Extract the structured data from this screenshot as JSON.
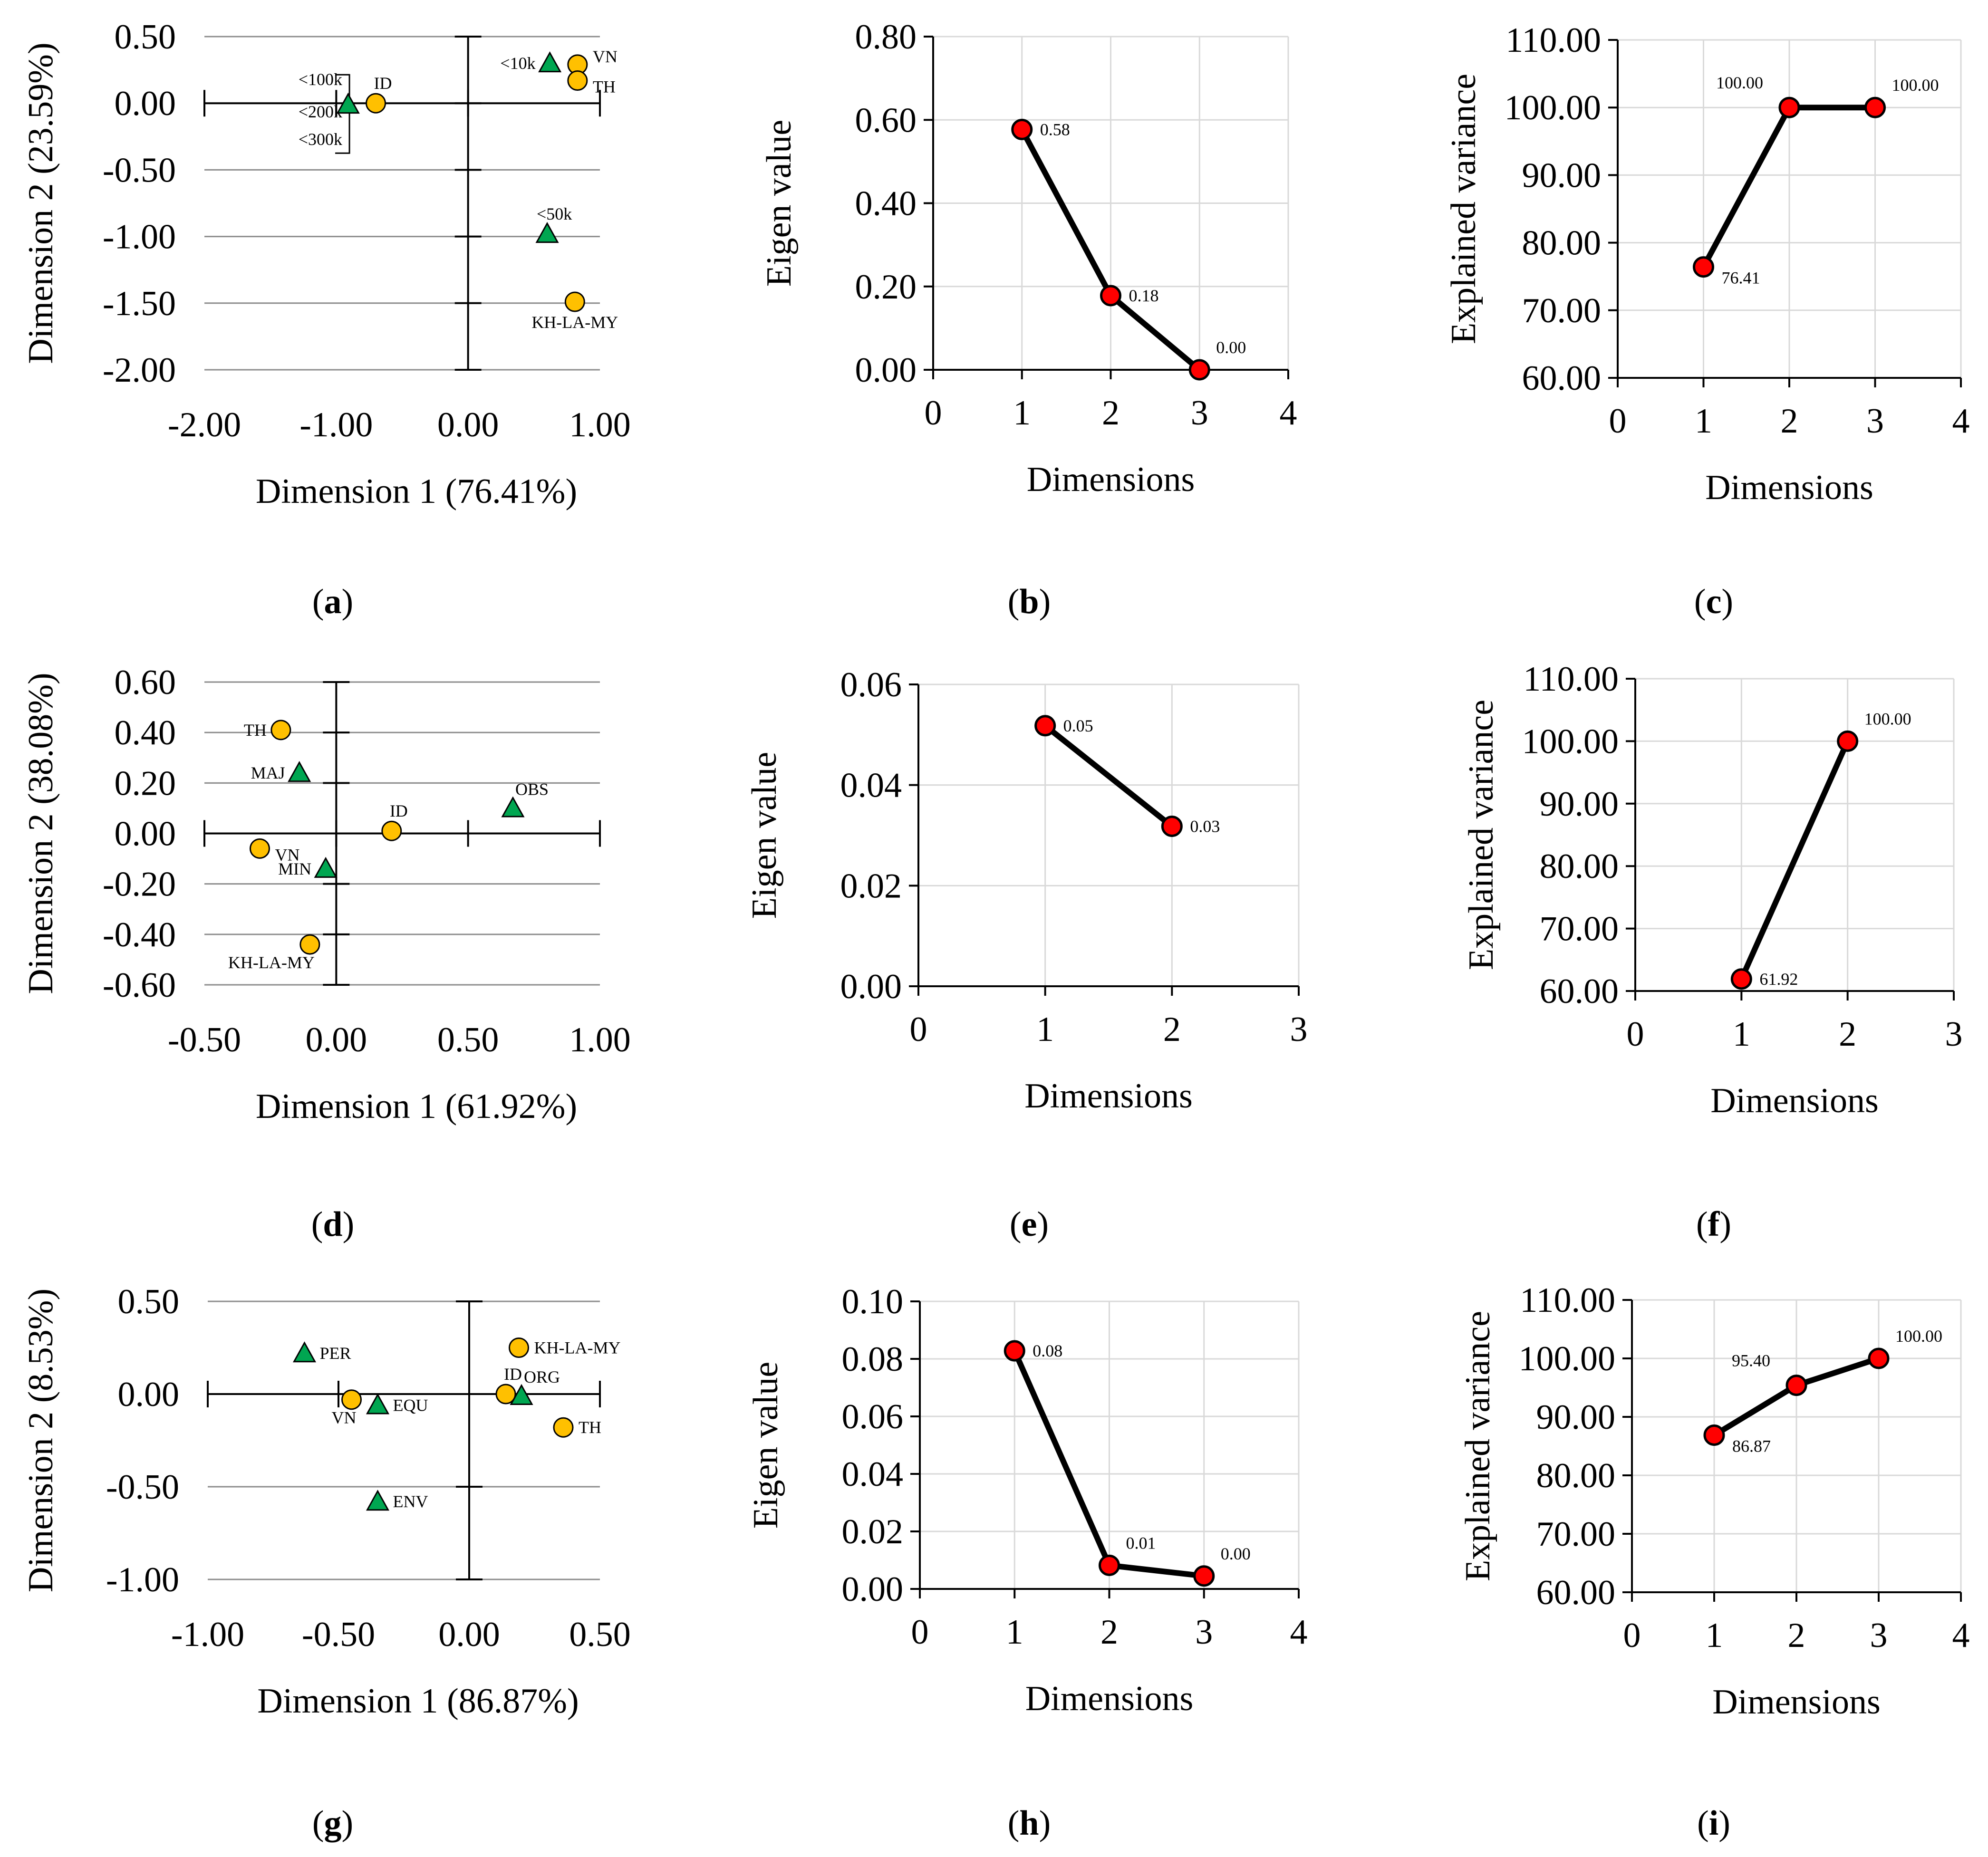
{
  "colors": {
    "circle_fill": "#FFC000",
    "triangle_fill": "#00A651",
    "scree_fill": "#FF0000",
    "line": "#000000",
    "grid_light": "#d9d9d9",
    "grid_dark": "#8c8c8c"
  },
  "chart_data": [
    {
      "id": "a",
      "type": "scatter",
      "caption": "a",
      "xlabel": "Dimension 1 (76.41%)",
      "ylabel": "Dimension 2 (23.59%)",
      "xlim": [
        -2.0,
        1.0
      ],
      "ylim": [
        -2.0,
        0.5
      ],
      "xticks": [
        -2.0,
        -1.0,
        0.0,
        1.0
      ],
      "xtick_labels": [
        "-2.00",
        "-1.00",
        "0.00",
        "1.00"
      ],
      "yticks": [
        -2.0,
        -1.5,
        -1.0,
        -0.5,
        0.0,
        0.5
      ],
      "ytick_labels": [
        "-2.00",
        "-1.50",
        "-1.00",
        "-0.50",
        "0.00",
        "0.50"
      ],
      "points": [
        {
          "label": "VN",
          "marker": "circle",
          "x": 0.83,
          "y": 0.29,
          "label_pos": "right-up"
        },
        {
          "label": "TH",
          "marker": "circle",
          "x": 0.83,
          "y": 0.17,
          "label_pos": "right-down"
        },
        {
          "label": "ID",
          "marker": "circle",
          "x": -0.7,
          "y": 0.0,
          "label_pos": "up"
        },
        {
          "label": "KH-LA-MY",
          "marker": "circle",
          "x": 0.81,
          "y": -1.49,
          "label_pos": "below"
        },
        {
          "label": "<10k",
          "marker": "triangle",
          "x": 0.62,
          "y": 0.3,
          "label_pos": "left"
        },
        {
          "label": "<50k",
          "marker": "triangle",
          "x": 0.6,
          "y": -0.98,
          "label_pos": "up"
        },
        {
          "label": "",
          "marker": "triangle",
          "x": -0.91,
          "y": -0.01,
          "label_pos": "none"
        }
      ],
      "bracket": {
        "labels": [
          "<100k",
          "<200k",
          "<300k"
        ]
      }
    },
    {
      "id": "b",
      "type": "line",
      "caption": "b",
      "xlabel": "Dimensions",
      "ylabel": "Eigen value",
      "xlim": [
        0,
        4
      ],
      "ylim": [
        0,
        0.8
      ],
      "xticks": [
        0,
        1,
        2,
        3,
        4
      ],
      "xtick_labels": [
        "0",
        "1",
        "2",
        "3",
        "4"
      ],
      "yticks": [
        0,
        0.2,
        0.4,
        0.6,
        0.8
      ],
      "ytick_labels": [
        "0.00",
        "0.20",
        "0.40",
        "0.60",
        "0.80"
      ],
      "x": [
        1,
        2,
        3
      ],
      "y": [
        0.577,
        0.178,
        0.0
      ],
      "labels": [
        "0.58",
        "0.18",
        "0.00"
      ],
      "label_pos": [
        "right",
        "right",
        "up-right"
      ]
    },
    {
      "id": "c",
      "type": "line",
      "caption": "c",
      "xlabel": "Dimensions",
      "ylabel": "Explained variance",
      "xlim": [
        0,
        4
      ],
      "ylim": [
        60,
        110
      ],
      "xticks": [
        0,
        1,
        2,
        3,
        4
      ],
      "xtick_labels": [
        "0",
        "1",
        "2",
        "3",
        "4"
      ],
      "yticks": [
        60,
        70,
        80,
        90,
        100,
        110
      ],
      "ytick_labels": [
        "60.00",
        "70.00",
        "80.00",
        "90.00",
        "100.00",
        "110.00"
      ],
      "x": [
        1,
        2,
        3
      ],
      "y": [
        76.41,
        100.0,
        100.0
      ],
      "labels": [
        "76.41",
        "100.00",
        "100.00"
      ],
      "label_pos": [
        "right-down",
        "up-left",
        "up-right"
      ]
    },
    {
      "id": "d",
      "type": "scatter",
      "caption": "d",
      "xlabel": "Dimension 1 (61.92%)",
      "ylabel": "Dimension 2 (38.08%)",
      "xlim": [
        -0.5,
        1.0
      ],
      "ylim": [
        -0.6,
        0.6
      ],
      "xticks": [
        -0.5,
        0.0,
        0.5,
        1.0
      ],
      "xtick_labels": [
        "-0.50",
        "0.00",
        "0.50",
        "1.00"
      ],
      "yticks": [
        -0.6,
        -0.4,
        -0.2,
        0.0,
        0.2,
        0.4,
        0.6
      ],
      "ytick_labels": [
        "-0.60",
        "-0.40",
        "-0.20",
        "0.00",
        "0.20",
        "0.40",
        "0.60"
      ],
      "points": [
        {
          "label": "TH",
          "marker": "circle",
          "x": -0.21,
          "y": 0.41,
          "label_pos": "left"
        },
        {
          "label": "ID",
          "marker": "circle",
          "x": 0.21,
          "y": 0.01,
          "label_pos": "up"
        },
        {
          "label": "VN",
          "marker": "circle",
          "x": -0.29,
          "y": -0.06,
          "label_pos": "right-down"
        },
        {
          "label": "KH-LA-MY",
          "marker": "circle",
          "x": -0.1,
          "y": -0.44,
          "label_pos": "below-left"
        },
        {
          "label": "MAJ",
          "marker": "triangle",
          "x": -0.14,
          "y": 0.24,
          "label_pos": "left"
        },
        {
          "label": "OBS",
          "marker": "triangle",
          "x": 0.67,
          "y": 0.1,
          "label_pos": "up-right"
        },
        {
          "label": "MIN",
          "marker": "triangle",
          "x": -0.04,
          "y": -0.14,
          "label_pos": "left"
        }
      ]
    },
    {
      "id": "e",
      "type": "line",
      "caption": "e",
      "xlabel": "Dimensions",
      "ylabel": "Eigen value",
      "xlim": [
        0,
        3
      ],
      "ylim": [
        0,
        0.06
      ],
      "xticks": [
        0,
        1,
        2,
        3
      ],
      "xtick_labels": [
        "0",
        "1",
        "2",
        "3"
      ],
      "yticks": [
        0,
        0.02,
        0.04,
        0.06
      ],
      "ytick_labels": [
        "0.00",
        "0.02",
        "0.04",
        "0.06"
      ],
      "x": [
        1,
        2
      ],
      "y": [
        0.0518,
        0.0318
      ],
      "labels": [
        "0.05",
        "0.03"
      ],
      "label_pos": [
        "right",
        "right"
      ]
    },
    {
      "id": "f",
      "type": "line",
      "caption": "f",
      "xlabel": "Dimensions",
      "ylabel": "Explained variance",
      "xlim": [
        0,
        3
      ],
      "ylim": [
        60,
        110
      ],
      "xticks": [
        0,
        1,
        2,
        3
      ],
      "xtick_labels": [
        "0",
        "1",
        "2",
        "3"
      ],
      "yticks": [
        60,
        70,
        80,
        90,
        100,
        110
      ],
      "ytick_labels": [
        "60.00",
        "70.00",
        "80.00",
        "90.00",
        "100.00",
        "110.00"
      ],
      "x": [
        1,
        2
      ],
      "y": [
        61.92,
        100.0
      ],
      "labels": [
        "61.92",
        "100.00"
      ],
      "label_pos": [
        "right",
        "up-right"
      ]
    },
    {
      "id": "g",
      "type": "scatter",
      "caption": "g",
      "xlabel": "Dimension 1 (86.87%)",
      "ylabel": "Dimension 2 (8.53%)",
      "xlim": [
        -1.0,
        0.5
      ],
      "ylim": [
        -1.0,
        0.5
      ],
      "xticks": [
        -1.0,
        -0.5,
        0.0,
        0.5
      ],
      "xtick_labels": [
        "-1.00",
        "-0.50",
        "0.00",
        "0.50"
      ],
      "yticks": [
        -1.0,
        -0.5,
        0.0,
        0.5
      ],
      "ytick_labels": [
        "-1.00",
        "-0.50",
        "0.00",
        "0.50"
      ],
      "points": [
        {
          "label": "KH-LA-MY",
          "marker": "circle",
          "x": 0.19,
          "y": 0.25,
          "label_pos": "right"
        },
        {
          "label": "ID",
          "marker": "circle",
          "x": 0.14,
          "y": 0.0,
          "label_pos": "up"
        },
        {
          "label": "TH",
          "marker": "circle",
          "x": 0.36,
          "y": -0.18,
          "label_pos": "right"
        },
        {
          "label": "VN",
          "marker": "circle",
          "x": -0.45,
          "y": -0.03,
          "label_pos": "below-left"
        },
        {
          "label": "PER",
          "marker": "triangle",
          "x": -0.63,
          "y": 0.22,
          "label_pos": "right"
        },
        {
          "label": "ORG",
          "marker": "triangle",
          "x": 0.2,
          "y": -0.01,
          "label_pos": "up-right"
        },
        {
          "label": "EQU",
          "marker": "triangle",
          "x": -0.35,
          "y": -0.06,
          "label_pos": "right"
        },
        {
          "label": "ENV",
          "marker": "triangle",
          "x": -0.35,
          "y": -0.58,
          "label_pos": "right"
        }
      ]
    },
    {
      "id": "h",
      "type": "line",
      "caption": "h",
      "xlabel": "Dimensions",
      "ylabel": "Eigen value",
      "xlim": [
        0,
        4
      ],
      "ylim": [
        0,
        0.1
      ],
      "xticks": [
        0,
        1,
        2,
        3,
        4
      ],
      "xtick_labels": [
        "0",
        "1",
        "2",
        "3",
        "4"
      ],
      "yticks": [
        0,
        0.02,
        0.04,
        0.06,
        0.08,
        0.1
      ],
      "ytick_labels": [
        "0.00",
        "0.02",
        "0.04",
        "0.06",
        "0.08",
        "0.10"
      ],
      "x": [
        1,
        2,
        3
      ],
      "y": [
        0.0828,
        0.0082,
        0.0045
      ],
      "labels": [
        "0.08",
        "0.01",
        "0.00"
      ],
      "label_pos": [
        "right",
        "up-right",
        "up-right"
      ]
    },
    {
      "id": "i",
      "type": "line",
      "caption": "i",
      "xlabel": "Dimensions",
      "ylabel": "Explained variance",
      "xlim": [
        0,
        4
      ],
      "ylim": [
        60,
        110
      ],
      "xticks": [
        0,
        1,
        2,
        3,
        4
      ],
      "xtick_labels": [
        "0",
        "1",
        "2",
        "3",
        "4"
      ],
      "yticks": [
        60,
        70,
        80,
        90,
        100,
        110
      ],
      "ytick_labels": [
        "60.00",
        "70.00",
        "80.00",
        "90.00",
        "100.00",
        "110.00"
      ],
      "x": [
        1,
        2,
        3
      ],
      "y": [
        86.87,
        95.4,
        100.0
      ],
      "labels": [
        "86.87",
        "95.40",
        "100.00"
      ],
      "label_pos": [
        "right-down",
        "up-left",
        "up-right"
      ]
    }
  ]
}
